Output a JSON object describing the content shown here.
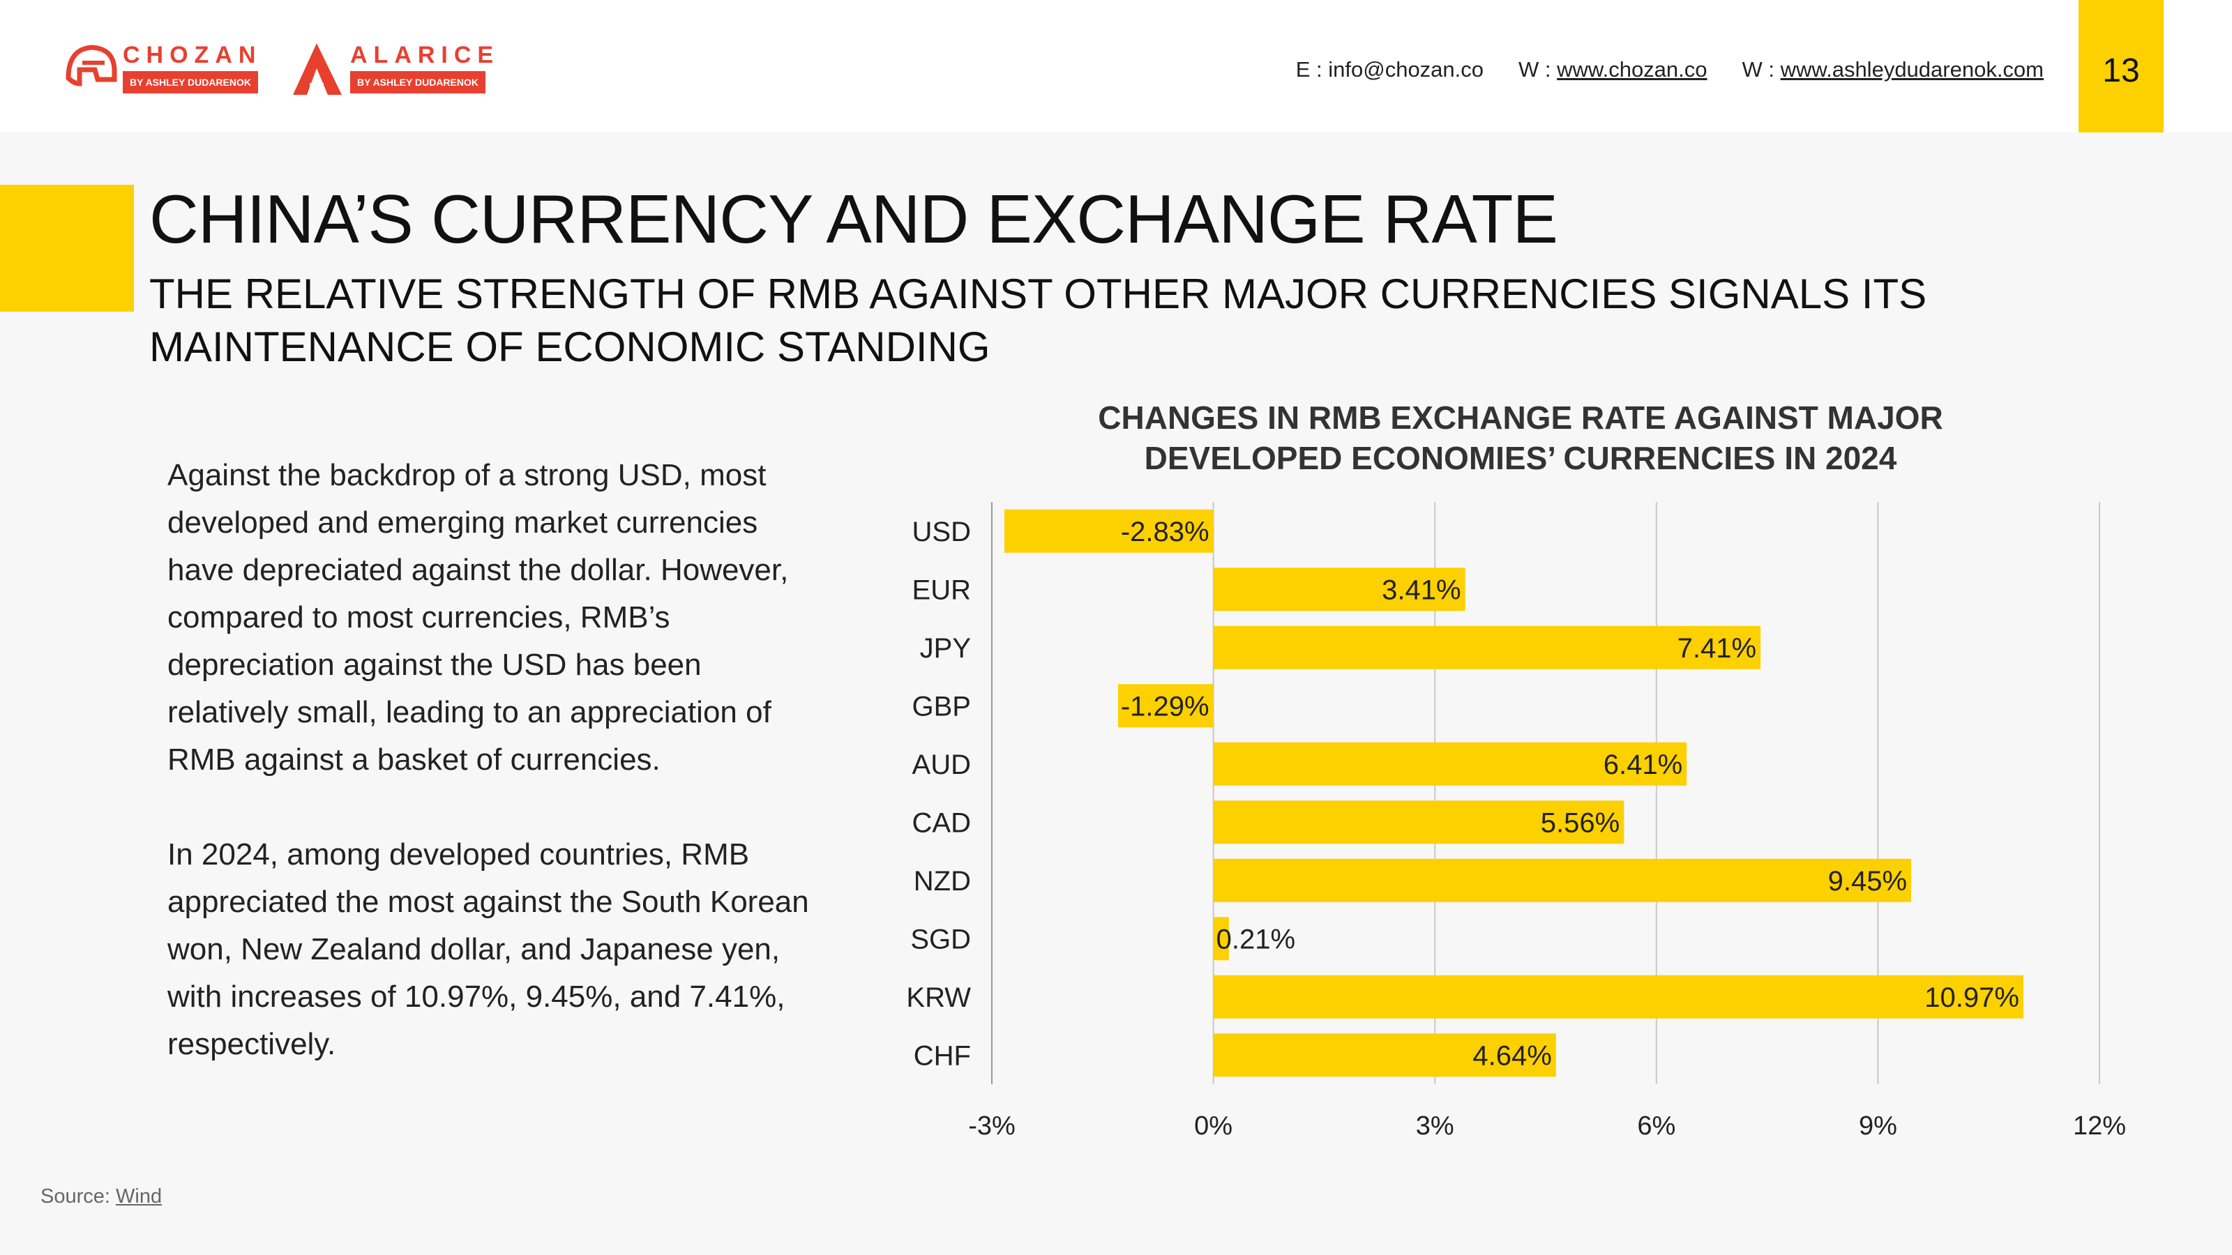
{
  "header": {
    "logos": [
      {
        "name": "CHOZAN",
        "sub": "BY ASHLEY DUDARENOK"
      },
      {
        "name": "ALARICE",
        "sub": "BY ASHLEY DUDARENOK"
      }
    ],
    "email_label": "E : info@chozan.co",
    "web1_prefix": "W : ",
    "web1": "www.chozan.co",
    "web2_prefix": "W : ",
    "web2": "www.ashleydudarenok.com",
    "page_number": "13"
  },
  "title": "CHINA’S CURRENCY AND EXCHANGE RATE",
  "subtitle": "THE RELATIVE STRENGTH OF RMB AGAINST OTHER MAJOR CURRENCIES SIGNALS ITS MAINTENANCE OF ECONOMIC STANDING",
  "body": {
    "paragraph1": "Against the backdrop of a strong USD, most developed and emerging market currencies have depreciated against the dollar. However, compared to most currencies, RMB’s depreciation against the USD has been relatively small, leading to an appreciation of RMB against a basket of currencies.",
    "paragraph2": "In 2024, among developed countries, RMB appreciated the most against the South Korean won, New Zealand dollar, and Japanese yen, with increases of 10.97%, 9.45%, and 7.41%, respectively."
  },
  "source": {
    "prefix": "Source: ",
    "name": "Wind"
  },
  "colors": {
    "accent": "#fdd000",
    "brand_red": "#e8402f"
  },
  "chart_data": {
    "type": "bar",
    "orientation": "horizontal",
    "title": "CHANGES IN RMB EXCHANGE RATE AGAINST MAJOR DEVELOPED ECONOMIES’ CURRENCIES IN 2024",
    "categories": [
      "USD",
      "EUR",
      "JPY",
      "GBP",
      "AUD",
      "CAD",
      "NZD",
      "SGD",
      "KRW",
      "CHF"
    ],
    "values": [
      -2.83,
      3.41,
      7.41,
      -1.29,
      6.41,
      5.56,
      9.45,
      0.21,
      10.97,
      4.64
    ],
    "data_labels": [
      "-2.83%",
      "3.41%",
      "7.41%",
      "-1.29%",
      "6.41%",
      "5.56%",
      "9.45%",
      "0.21%",
      "10.97%",
      "4.64%"
    ],
    "xlim": [
      -3,
      12
    ],
    "xticks": [
      -3,
      0,
      3,
      6,
      9,
      12
    ],
    "xtick_labels": [
      "-3%",
      "0%",
      "3%",
      "6%",
      "9%",
      "12%"
    ],
    "grid": true,
    "bar_color": "#fdd000",
    "legend": "none"
  }
}
